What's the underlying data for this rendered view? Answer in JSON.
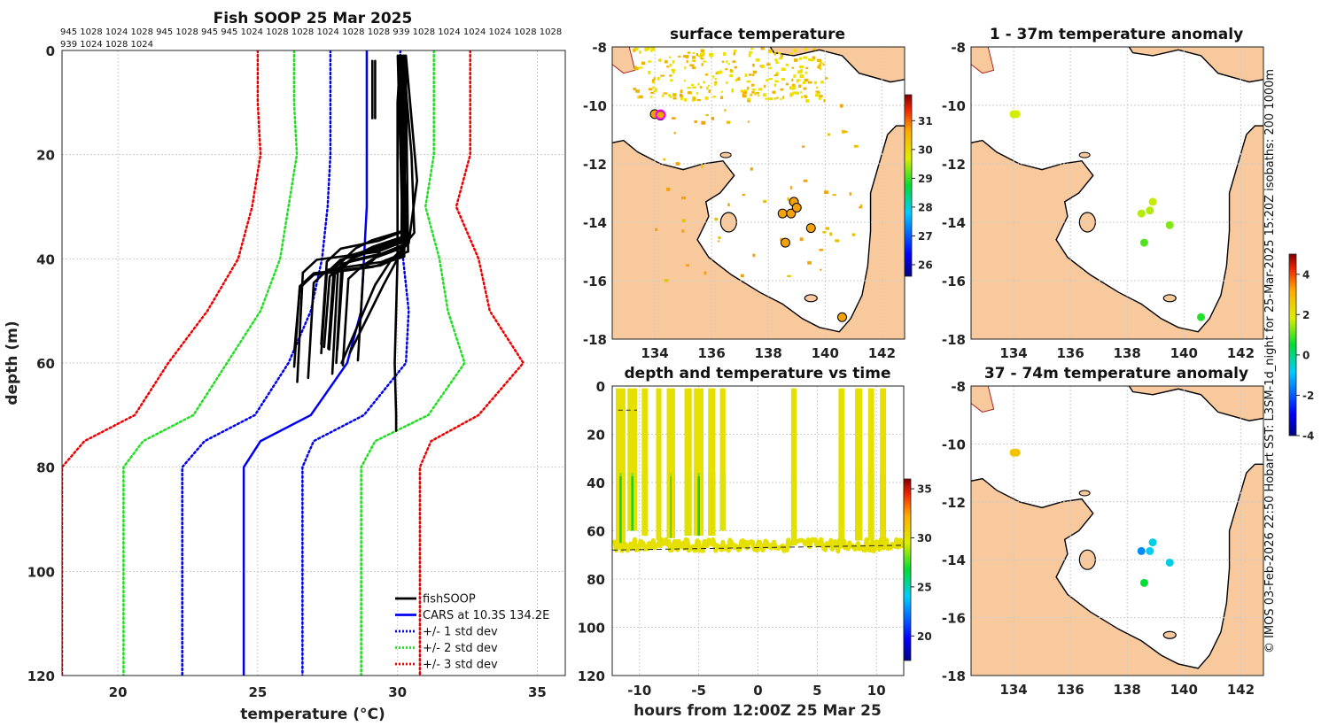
{
  "chart_data": [
    {
      "id": "profile",
      "type": "line",
      "title": "Fish SOOP 25 Mar 2025",
      "xlabel": "temperature (°C)",
      "ylabel": "depth (m)",
      "xlim": [
        18,
        36
      ],
      "ylim": [
        120,
        0
      ],
      "xticks": [
        20,
        25,
        30,
        35
      ],
      "yticks": [
        0,
        20,
        40,
        60,
        80,
        100,
        120
      ],
      "grid": true,
      "legend_position": "bottom-right",
      "pressure_labels_row1": "945 1028 1024 1028 945 1028 945 945 1024 1028 1028 1024 1028 1028 939 1028 1024 1024 1024 1028 1028",
      "pressure_labels_row2": "939 1024 1028 1024",
      "legend": [
        {
          "label": "fishSOOP",
          "color": "#000000",
          "style": "solid"
        },
        {
          "label": "CARS at 10.3S 134.2E",
          "color": "#0000ee",
          "style": "solid"
        },
        {
          "label": "+/- 1 std dev",
          "color": "#0000ee",
          "style": "dotted"
        },
        {
          "label": "+/- 2 std dev",
          "color": "#22dd22",
          "style": "dotted"
        },
        {
          "label": "+/- 3 std dev",
          "color": "#ee0000",
          "style": "dotted"
        }
      ],
      "cars_mean": {
        "depth": [
          0,
          10,
          20,
          30,
          40,
          50,
          60,
          70,
          75,
          80,
          120
        ],
        "temp": [
          28.9,
          28.9,
          28.9,
          28.9,
          28.8,
          28.7,
          28.2,
          26.9,
          25.1,
          24.5,
          24.5
        ]
      },
      "std1": {
        "depth": [
          0,
          10,
          20,
          30,
          40,
          50,
          60,
          70,
          75,
          80,
          120
        ],
        "minus": [
          27.6,
          27.6,
          27.6,
          27.5,
          27.3,
          26.9,
          26.1,
          24.9,
          23.1,
          22.3,
          22.3
        ],
        "plus": [
          30.1,
          30.1,
          30.1,
          30.2,
          30.2,
          30.4,
          30.3,
          28.8,
          27.0,
          26.6,
          26.6
        ]
      },
      "std2": {
        "depth": [
          0,
          10,
          20,
          30,
          40,
          50,
          60,
          70,
          75,
          80,
          120
        ],
        "minus": [
          26.3,
          26.3,
          26.4,
          26.1,
          25.8,
          25.1,
          23.9,
          22.7,
          20.9,
          20.2,
          20.2
        ],
        "plus": [
          31.3,
          31.3,
          31.3,
          31.0,
          31.5,
          31.8,
          32.4,
          31.1,
          29.2,
          28.7,
          28.7
        ]
      },
      "std3": {
        "depth": [
          0,
          10,
          20,
          30,
          40,
          50,
          60,
          70,
          75,
          80,
          120
        ],
        "minus": [
          25.0,
          25.0,
          25.1,
          24.8,
          24.3,
          23.2,
          21.8,
          20.6,
          18.8,
          18.0,
          18.0
        ],
        "plus": [
          32.6,
          32.6,
          32.6,
          32.1,
          32.9,
          33.3,
          34.5,
          32.9,
          31.2,
          30.8,
          30.8
        ]
      }
    },
    {
      "id": "sst_map",
      "type": "scatter",
      "title": "surface temperature",
      "xlim": [
        132.5,
        142.8
      ],
      "ylim": [
        -18,
        -8
      ],
      "xticks": [
        134,
        136,
        138,
        140,
        142
      ],
      "yticks": [
        -8,
        -10,
        -12,
        -14,
        -16,
        -18
      ],
      "colorbar_range": [
        25.6,
        31.9
      ],
      "colorbar_ticks": [
        26,
        27,
        28,
        29,
        30,
        31
      ],
      "points": [
        {
          "lon": 134.0,
          "lat": -10.3
        },
        {
          "lon": 134.2,
          "lat": -10.35
        },
        {
          "lon": 138.9,
          "lat": -13.3
        },
        {
          "lon": 138.5,
          "lat": -13.7
        },
        {
          "lon": 138.8,
          "lat": -13.7
        },
        {
          "lon": 139.0,
          "lat": -13.5
        },
        {
          "lon": 139.5,
          "lat": -14.2
        },
        {
          "lon": 138.6,
          "lat": -14.7
        },
        {
          "lon": 140.6,
          "lat": -17.25
        }
      ]
    },
    {
      "id": "anom_1_37",
      "type": "scatter",
      "title": "1 - 37m temperature anomaly",
      "xlim": [
        132.5,
        142.8
      ],
      "ylim": [
        -18,
        -8
      ],
      "xticks": [
        134,
        136,
        138,
        140,
        142
      ],
      "yticks": [
        -8,
        -10,
        -12,
        -14,
        -16,
        -18
      ],
      "points": [
        {
          "lon": 134.0,
          "lat": -10.3,
          "anom": 1.8
        },
        {
          "lon": 134.1,
          "lat": -10.3,
          "anom": 1.8
        },
        {
          "lon": 138.9,
          "lat": -13.3,
          "anom": 1.7
        },
        {
          "lon": 138.5,
          "lat": -13.7,
          "anom": 1.6
        },
        {
          "lon": 138.8,
          "lat": -13.6,
          "anom": 1.6
        },
        {
          "lon": 139.5,
          "lat": -14.1,
          "anom": 1.3
        },
        {
          "lon": 138.6,
          "lat": -14.7,
          "anom": 1.0
        },
        {
          "lon": 140.6,
          "lat": -17.25,
          "anom": 0.7
        }
      ]
    },
    {
      "id": "anom_37_74",
      "type": "scatter",
      "title": "37 - 74m temperature anomaly",
      "xlim": [
        132.5,
        142.8
      ],
      "ylim": [
        -18,
        -8
      ],
      "xticks": [
        134,
        136,
        138,
        140,
        142
      ],
      "yticks": [
        -8,
        -10,
        -12,
        -14,
        -16,
        -18
      ],
      "colorbar_range": [
        -4,
        5
      ],
      "colorbar_ticks": [
        -4,
        -2,
        0,
        2,
        4
      ],
      "points": [
        {
          "lon": 134.0,
          "lat": -10.3,
          "anom": 2.7
        },
        {
          "lon": 134.1,
          "lat": -10.3,
          "anom": 2.7
        },
        {
          "lon": 138.9,
          "lat": -13.4,
          "anom": -0.7
        },
        {
          "lon": 138.8,
          "lat": -13.7,
          "anom": -0.8
        },
        {
          "lon": 138.5,
          "lat": -13.7,
          "anom": -1.5
        },
        {
          "lon": 139.5,
          "lat": -14.1,
          "anom": -0.7
        },
        {
          "lon": 138.6,
          "lat": -14.8,
          "anom": 0.5
        }
      ]
    },
    {
      "id": "depth_time",
      "type": "scatter",
      "title": "depth and temperature vs time",
      "xlabel": "hours from 12:00Z 25 Mar 25",
      "xlim": [
        -12.3,
        12.3
      ],
      "ylim": [
        120,
        0
      ],
      "xticks": [
        -10,
        -5,
        0,
        5,
        10
      ],
      "yticks": [
        0,
        20,
        40,
        60,
        80,
        100,
        120
      ],
      "colorbar_range": [
        17.5,
        36
      ],
      "colorbar_ticks": [
        20,
        25,
        30,
        35
      ],
      "casts": [
        {
          "start": -12.0,
          "end": -11.2,
          "max_depth": 65
        },
        {
          "start": -11.0,
          "end": -10.2,
          "max_depth": 60
        },
        {
          "start": -9.8,
          "end": -9.3,
          "max_depth": 62
        },
        {
          "start": -8.6,
          "end": -8.2,
          "max_depth": 64
        },
        {
          "start": -7.7,
          "end": -7.0,
          "max_depth": 63
        },
        {
          "start": -6.2,
          "end": -5.6,
          "max_depth": 62
        },
        {
          "start": -5.4,
          "end": -4.6,
          "max_depth": 62
        },
        {
          "start": -4.2,
          "end": -3.6,
          "max_depth": 62
        },
        {
          "start": -3.2,
          "end": -2.8,
          "max_depth": 60
        },
        {
          "start": 2.8,
          "end": 3.0,
          "max_depth": 66
        },
        {
          "start": 6.8,
          "end": 7.3,
          "max_depth": 64
        },
        {
          "start": 8.2,
          "end": 8.8,
          "max_depth": 64
        },
        {
          "start": 9.3,
          "end": 9.8,
          "max_depth": 64
        },
        {
          "start": 10.3,
          "end": 10.8,
          "max_depth": 64
        }
      ],
      "bottom_depth_line": {
        "start": 68,
        "end": 66
      }
    }
  ],
  "side_caption": "© IMOS 03-Feb-2026 22:50 Hobart SST: L3SM-1d_night for 25-Mar-2025 15:20Z isobaths: 200  1000m",
  "colors": {
    "land": "#f7c99c",
    "coast": "#000000",
    "grid": "#cccccc",
    "sst_points": "#f4a20c"
  }
}
